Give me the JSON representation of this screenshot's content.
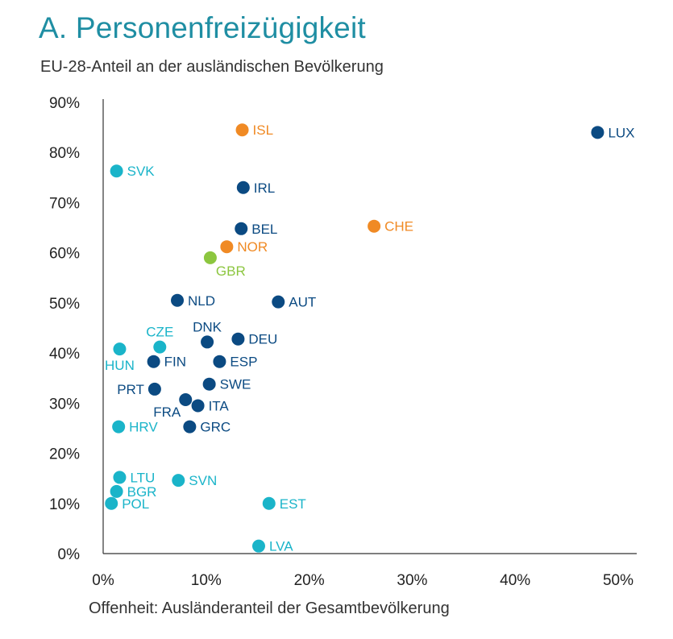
{
  "chart_data": {
    "type": "scatter",
    "title": "A. Personenfreizügigkeit",
    "subtitle": "EU-28-Anteil an der ausländischen Bevölkerung",
    "xlabel": "Offenheit: Ausländeranteil der Gesamtbevölkerung",
    "ylabel": "",
    "xlim": [
      0,
      0.5
    ],
    "ylim": [
      0,
      0.9
    ],
    "x_ticks": [
      "0%",
      "10%",
      "20%",
      "30%",
      "40%",
      "50%"
    ],
    "y_ticks": [
      "0%",
      "10%",
      "20%",
      "30%",
      "40%",
      "50%",
      "60%",
      "70%",
      "80%",
      "90%"
    ],
    "grid": false,
    "colors": {
      "dark_blue": "#0b4a82",
      "cyan": "#1ab4c9",
      "orange": "#f08a24",
      "green": "#8cc63f"
    },
    "points": [
      {
        "label": "LUX",
        "x": 0.48,
        "y": 0.84,
        "color": "dark_blue",
        "label_pos": "right"
      },
      {
        "label": "ISL",
        "x": 0.135,
        "y": 0.845,
        "color": "orange",
        "label_pos": "right"
      },
      {
        "label": "SVK",
        "x": 0.013,
        "y": 0.763,
        "color": "cyan",
        "label_pos": "right"
      },
      {
        "label": "IRL",
        "x": 0.136,
        "y": 0.73,
        "color": "dark_blue",
        "label_pos": "right"
      },
      {
        "label": "BEL",
        "x": 0.134,
        "y": 0.648,
        "color": "dark_blue",
        "label_pos": "right"
      },
      {
        "label": "CHE",
        "x": 0.263,
        "y": 0.653,
        "color": "orange",
        "label_pos": "right"
      },
      {
        "label": "NOR",
        "x": 0.12,
        "y": 0.612,
        "color": "orange",
        "label_pos": "right"
      },
      {
        "label": "GBR",
        "x": 0.104,
        "y": 0.59,
        "color": "green",
        "label_pos": "below-right"
      },
      {
        "label": "NLD",
        "x": 0.072,
        "y": 0.505,
        "color": "dark_blue",
        "label_pos": "right"
      },
      {
        "label": "AUT",
        "x": 0.17,
        "y": 0.502,
        "color": "dark_blue",
        "label_pos": "right"
      },
      {
        "label": "DNK",
        "x": 0.101,
        "y": 0.422,
        "color": "dark_blue",
        "label_pos": "above"
      },
      {
        "label": "DEU",
        "x": 0.131,
        "y": 0.428,
        "color": "dark_blue",
        "label_pos": "right"
      },
      {
        "label": "CZE",
        "x": 0.055,
        "y": 0.412,
        "color": "cyan",
        "label_pos": "above"
      },
      {
        "label": "HUN",
        "x": 0.016,
        "y": 0.408,
        "color": "cyan",
        "label_pos": "below"
      },
      {
        "label": "FIN",
        "x": 0.049,
        "y": 0.383,
        "color": "dark_blue",
        "label_pos": "right"
      },
      {
        "label": "ESP",
        "x": 0.113,
        "y": 0.383,
        "color": "dark_blue",
        "label_pos": "right"
      },
      {
        "label": "SWE",
        "x": 0.103,
        "y": 0.338,
        "color": "dark_blue",
        "label_pos": "right"
      },
      {
        "label": "PRT",
        "x": 0.05,
        "y": 0.328,
        "color": "dark_blue",
        "label_pos": "left"
      },
      {
        "label": "FRA",
        "x": 0.08,
        "y": 0.307,
        "color": "dark_blue",
        "label_pos": "below-left"
      },
      {
        "label": "ITA",
        "x": 0.092,
        "y": 0.295,
        "color": "dark_blue",
        "label_pos": "right"
      },
      {
        "label": "GRC",
        "x": 0.084,
        "y": 0.253,
        "color": "dark_blue",
        "label_pos": "right"
      },
      {
        "label": "HRV",
        "x": 0.015,
        "y": 0.253,
        "color": "cyan",
        "label_pos": "right"
      },
      {
        "label": "LTU",
        "x": 0.016,
        "y": 0.152,
        "color": "cyan",
        "label_pos": "right"
      },
      {
        "label": "SVN",
        "x": 0.073,
        "y": 0.146,
        "color": "cyan",
        "label_pos": "right"
      },
      {
        "label": "BGR",
        "x": 0.013,
        "y": 0.124,
        "color": "cyan",
        "label_pos": "right"
      },
      {
        "label": "POL",
        "x": 0.008,
        "y": 0.1,
        "color": "cyan",
        "label_pos": "right"
      },
      {
        "label": "EST",
        "x": 0.161,
        "y": 0.1,
        "color": "cyan",
        "label_pos": "right"
      },
      {
        "label": "LVA",
        "x": 0.151,
        "y": 0.015,
        "color": "cyan",
        "label_pos": "right"
      }
    ]
  }
}
